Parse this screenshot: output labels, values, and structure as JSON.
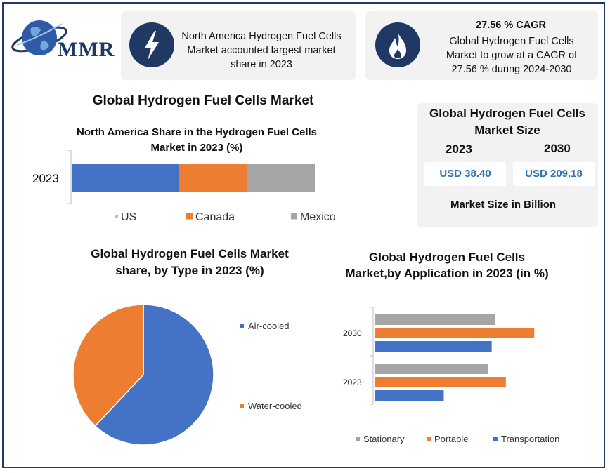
{
  "brand": {
    "name": "MMR"
  },
  "highlight_left": {
    "icon": "lightning-icon",
    "text": "North America Hydrogen Fuel Cells Market accounted largest market share in 2023"
  },
  "highlight_right": {
    "icon": "flame-icon",
    "title": "27.56 % CAGR",
    "text": "Global Hydrogen Fuel Cells Market to grow at a CAGR of 27.56 % during 2024-2030"
  },
  "main_title": "Global Hydrogen Fuel Cells Market",
  "size_card": {
    "title": "Global Hydrogen Fuel Cells Market Size",
    "year_a": "2023",
    "year_b": "2030",
    "value_a": "USD 38.40",
    "value_b": "USD 209.18",
    "footer": "Market Size in Billion"
  },
  "colors": {
    "blue": "#4472c4",
    "orange": "#ed7d31",
    "gray": "#a5a5a5",
    "navy": "#1f3864"
  },
  "chart_data": [
    {
      "type": "bar",
      "orientation": "horizontal-stacked",
      "title": "North America Share in the Hydrogen Fuel Cells Market in 2023 (%)",
      "categories": [
        "2023"
      ],
      "series": [
        {
          "name": "US",
          "values": [
            44
          ]
        },
        {
          "name": "Canada",
          "values": [
            28
          ]
        },
        {
          "name": "Mexico",
          "values": [
            28
          ]
        }
      ],
      "legend": "bottom"
    },
    {
      "type": "pie",
      "title": "Global Hydrogen Fuel Cells Market share, by Type in 2023  (%)",
      "labels": [
        "Air-cooled",
        "Water-cooled"
      ],
      "values": [
        62,
        38
      ],
      "legend": "right"
    },
    {
      "type": "bar",
      "orientation": "horizontal-grouped",
      "title": "Global Hydrogen Fuel Cells Market,by Application in 2023 (in %)",
      "categories": [
        "2030",
        "2023"
      ],
      "series": [
        {
          "name": "Stationary",
          "values": [
            34,
            32
          ]
        },
        {
          "name": "Portable",
          "values": [
            45,
            37
          ]
        },
        {
          "name": "Transportation",
          "values": [
            33,
            19.5
          ]
        }
      ],
      "legend": "bottom"
    }
  ]
}
